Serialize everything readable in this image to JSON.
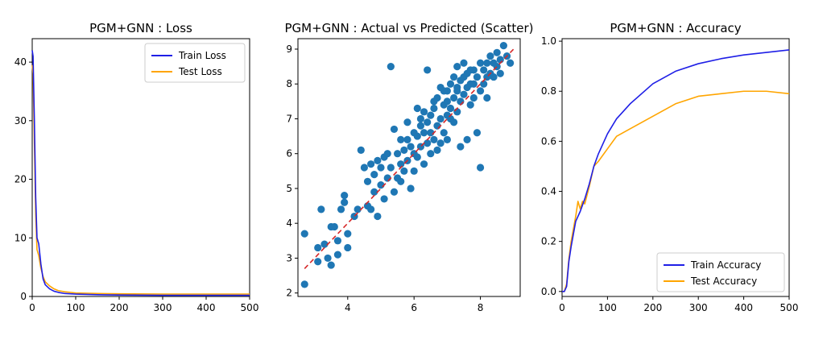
{
  "chart_data": [
    {
      "type": "line",
      "title": "PGM+GNN : Loss",
      "xlabel": "",
      "ylabel": "",
      "xlim": [
        0,
        500
      ],
      "ylim": [
        0,
        44
      ],
      "xticks": [
        0,
        100,
        200,
        300,
        400,
        500
      ],
      "yticks": [
        0,
        10,
        20,
        30,
        40
      ],
      "legend": "top-right",
      "series": [
        {
          "name": "Train Loss",
          "color": "#1f1fe6",
          "x": [
            0,
            2,
            5,
            8,
            11,
            15,
            20,
            25,
            30,
            40,
            50,
            60,
            75,
            100,
            150,
            200,
            300,
            400,
            500
          ],
          "y": [
            42,
            41,
            30,
            17,
            10,
            9,
            5.5,
            3.0,
            2.0,
            1.3,
            0.9,
            0.7,
            0.5,
            0.4,
            0.3,
            0.25,
            0.2,
            0.2,
            0.2
          ]
        },
        {
          "name": "Test Loss",
          "color": "#ffa500",
          "x": [
            0,
            2,
            5,
            8,
            11,
            15,
            20,
            25,
            30,
            40,
            50,
            60,
            75,
            100,
            150,
            200,
            300,
            400,
            500
          ],
          "y": [
            39.5,
            38,
            26,
            14,
            8,
            7,
            4.8,
            3.4,
            2.5,
            1.8,
            1.3,
            1.0,
            0.8,
            0.6,
            0.5,
            0.45,
            0.4,
            0.4,
            0.4
          ]
        }
      ]
    },
    {
      "type": "scatter",
      "title": "PGM+GNN : Actual vs Predicted (Scatter)",
      "xlabel": "",
      "ylabel": "",
      "xlim": [
        2.5,
        9.2
      ],
      "ylim": [
        1.9,
        9.3
      ],
      "xticks": [
        4,
        6,
        8
      ],
      "yticks": [
        2,
        3,
        4,
        5,
        6,
        7,
        8,
        9
      ],
      "point_color": "#1f77b4",
      "reference_line": {
        "x": [
          2.7,
          9.0
        ],
        "y": [
          2.7,
          9.0
        ],
        "color": "#d62728"
      },
      "points": [
        [
          2.7,
          2.25
        ],
        [
          2.7,
          3.7
        ],
        [
          3.1,
          2.9
        ],
        [
          3.1,
          3.3
        ],
        [
          3.2,
          4.4
        ],
        [
          3.3,
          3.4
        ],
        [
          3.4,
          3.0
        ],
        [
          3.5,
          2.8
        ],
        [
          3.5,
          3.9
        ],
        [
          3.6,
          3.9
        ],
        [
          3.7,
          3.5
        ],
        [
          3.7,
          3.1
        ],
        [
          3.8,
          4.4
        ],
        [
          3.9,
          4.6
        ],
        [
          3.9,
          4.8
        ],
        [
          4.0,
          3.7
        ],
        [
          4.0,
          3.3
        ],
        [
          4.2,
          4.2
        ],
        [
          4.3,
          4.4
        ],
        [
          4.4,
          6.1
        ],
        [
          4.5,
          5.6
        ],
        [
          4.6,
          4.5
        ],
        [
          4.6,
          5.2
        ],
        [
          4.7,
          4.4
        ],
        [
          4.7,
          5.7
        ],
        [
          4.8,
          4.9
        ],
        [
          4.8,
          5.4
        ],
        [
          4.9,
          5.8
        ],
        [
          4.9,
          4.2
        ],
        [
          5.0,
          5.6
        ],
        [
          5.0,
          5.1
        ],
        [
          5.1,
          5.9
        ],
        [
          5.1,
          4.7
        ],
        [
          5.2,
          5.3
        ],
        [
          5.2,
          6.0
        ],
        [
          5.3,
          8.5
        ],
        [
          5.3,
          5.6
        ],
        [
          5.4,
          4.9
        ],
        [
          5.4,
          6.7
        ],
        [
          5.5,
          5.3
        ],
        [
          5.5,
          6.0
        ],
        [
          5.6,
          5.7
        ],
        [
          5.6,
          5.2
        ],
        [
          5.7,
          6.1
        ],
        [
          5.7,
          5.5
        ],
        [
          5.8,
          6.4
        ],
        [
          5.8,
          5.8
        ],
        [
          5.9,
          5.0
        ],
        [
          5.9,
          6.2
        ],
        [
          6.0,
          6.6
        ],
        [
          6.0,
          5.5
        ],
        [
          6.0,
          6.0
        ],
        [
          6.1,
          6.5
        ],
        [
          6.1,
          5.9
        ],
        [
          6.2,
          7.0
        ],
        [
          6.2,
          6.2
        ],
        [
          6.3,
          5.7
        ],
        [
          6.3,
          6.6
        ],
        [
          6.4,
          6.9
        ],
        [
          6.4,
          6.3
        ],
        [
          6.4,
          8.4
        ],
        [
          6.5,
          6.0
        ],
        [
          6.5,
          6.6
        ],
        [
          6.6,
          7.3
        ],
        [
          6.6,
          6.4
        ],
        [
          6.7,
          7.6
        ],
        [
          6.7,
          6.8
        ],
        [
          6.7,
          6.1
        ],
        [
          6.8,
          7.9
        ],
        [
          6.8,
          7.0
        ],
        [
          6.9,
          6.6
        ],
        [
          6.9,
          7.4
        ],
        [
          7.0,
          7.8
        ],
        [
          7.0,
          7.1
        ],
        [
          7.0,
          6.4
        ],
        [
          7.1,
          8.0
        ],
        [
          7.1,
          7.3
        ],
        [
          7.2,
          7.6
        ],
        [
          7.2,
          6.9
        ],
        [
          7.3,
          8.5
        ],
        [
          7.3,
          7.8
        ],
        [
          7.3,
          7.2
        ],
        [
          7.4,
          8.1
        ],
        [
          7.4,
          7.5
        ],
        [
          7.4,
          6.2
        ],
        [
          7.5,
          8.2
        ],
        [
          7.5,
          7.7
        ],
        [
          7.6,
          8.3
        ],
        [
          7.6,
          7.9
        ],
        [
          7.6,
          6.4
        ],
        [
          7.7,
          8.0
        ],
        [
          7.7,
          7.4
        ],
        [
          7.8,
          8.4
        ],
        [
          7.8,
          8.0
        ],
        [
          7.9,
          8.2
        ],
        [
          7.9,
          6.6
        ],
        [
          8.0,
          8.6
        ],
        [
          8.0,
          7.8
        ],
        [
          8.0,
          5.6
        ],
        [
          8.1,
          8.4
        ],
        [
          8.1,
          8.0
        ],
        [
          8.2,
          8.6
        ],
        [
          8.2,
          7.6
        ],
        [
          8.3,
          8.8
        ],
        [
          8.3,
          8.3
        ],
        [
          8.4,
          8.6
        ],
        [
          8.5,
          8.9
        ],
        [
          8.5,
          8.5
        ],
        [
          8.6,
          8.7
        ],
        [
          8.6,
          8.3
        ],
        [
          8.7,
          9.1
        ],
        [
          8.8,
          8.8
        ],
        [
          8.9,
          8.6
        ],
        [
          6.3,
          7.2
        ],
        [
          6.9,
          7.8
        ],
        [
          7.2,
          8.2
        ],
        [
          5.8,
          6.9
        ],
        [
          6.6,
          7.5
        ],
        [
          7.5,
          8.6
        ],
        [
          6.1,
          7.3
        ],
        [
          7.0,
          7.5
        ],
        [
          7.8,
          7.6
        ],
        [
          8.2,
          8.2
        ],
        [
          6.5,
          7.1
        ],
        [
          7.3,
          7.9
        ],
        [
          5.6,
          6.4
        ],
        [
          6.8,
          6.3
        ],
        [
          7.7,
          8.4
        ],
        [
          8.4,
          8.2
        ],
        [
          6.2,
          6.8
        ],
        [
          7.1,
          7.0
        ]
      ]
    },
    {
      "type": "line",
      "title": "PGM+GNN : Accuracy",
      "xlabel": "",
      "ylabel": "",
      "xlim": [
        0,
        500
      ],
      "ylim": [
        -0.02,
        1.01
      ],
      "xticks": [
        0,
        100,
        200,
        300,
        400,
        500
      ],
      "yticks": [
        0.0,
        0.2,
        0.4,
        0.6,
        0.8,
        1.0
      ],
      "legend": "bottom-right",
      "series": [
        {
          "name": "Train Accuracy",
          "color": "#1f1fe6",
          "x": [
            0,
            5,
            10,
            15,
            20,
            30,
            40,
            50,
            60,
            70,
            80,
            100,
            120,
            150,
            200,
            250,
            300,
            350,
            400,
            450,
            500
          ],
          "y": [
            0.0,
            0.0,
            0.02,
            0.12,
            0.18,
            0.28,
            0.32,
            0.37,
            0.43,
            0.5,
            0.55,
            0.63,
            0.69,
            0.75,
            0.83,
            0.88,
            0.91,
            0.93,
            0.945,
            0.955,
            0.965
          ]
        },
        {
          "name": "Test Accuracy",
          "color": "#ffa500",
          "x": [
            0,
            5,
            10,
            15,
            20,
            30,
            35,
            40,
            45,
            50,
            60,
            70,
            80,
            100,
            120,
            150,
            200,
            250,
            300,
            350,
            400,
            420,
            450,
            500
          ],
          "y": [
            0.0,
            0.0,
            0.03,
            0.13,
            0.2,
            0.3,
            0.36,
            0.33,
            0.36,
            0.35,
            0.42,
            0.5,
            0.52,
            0.57,
            0.62,
            0.65,
            0.7,
            0.75,
            0.78,
            0.79,
            0.8,
            0.8,
            0.8,
            0.79
          ]
        }
      ]
    }
  ]
}
